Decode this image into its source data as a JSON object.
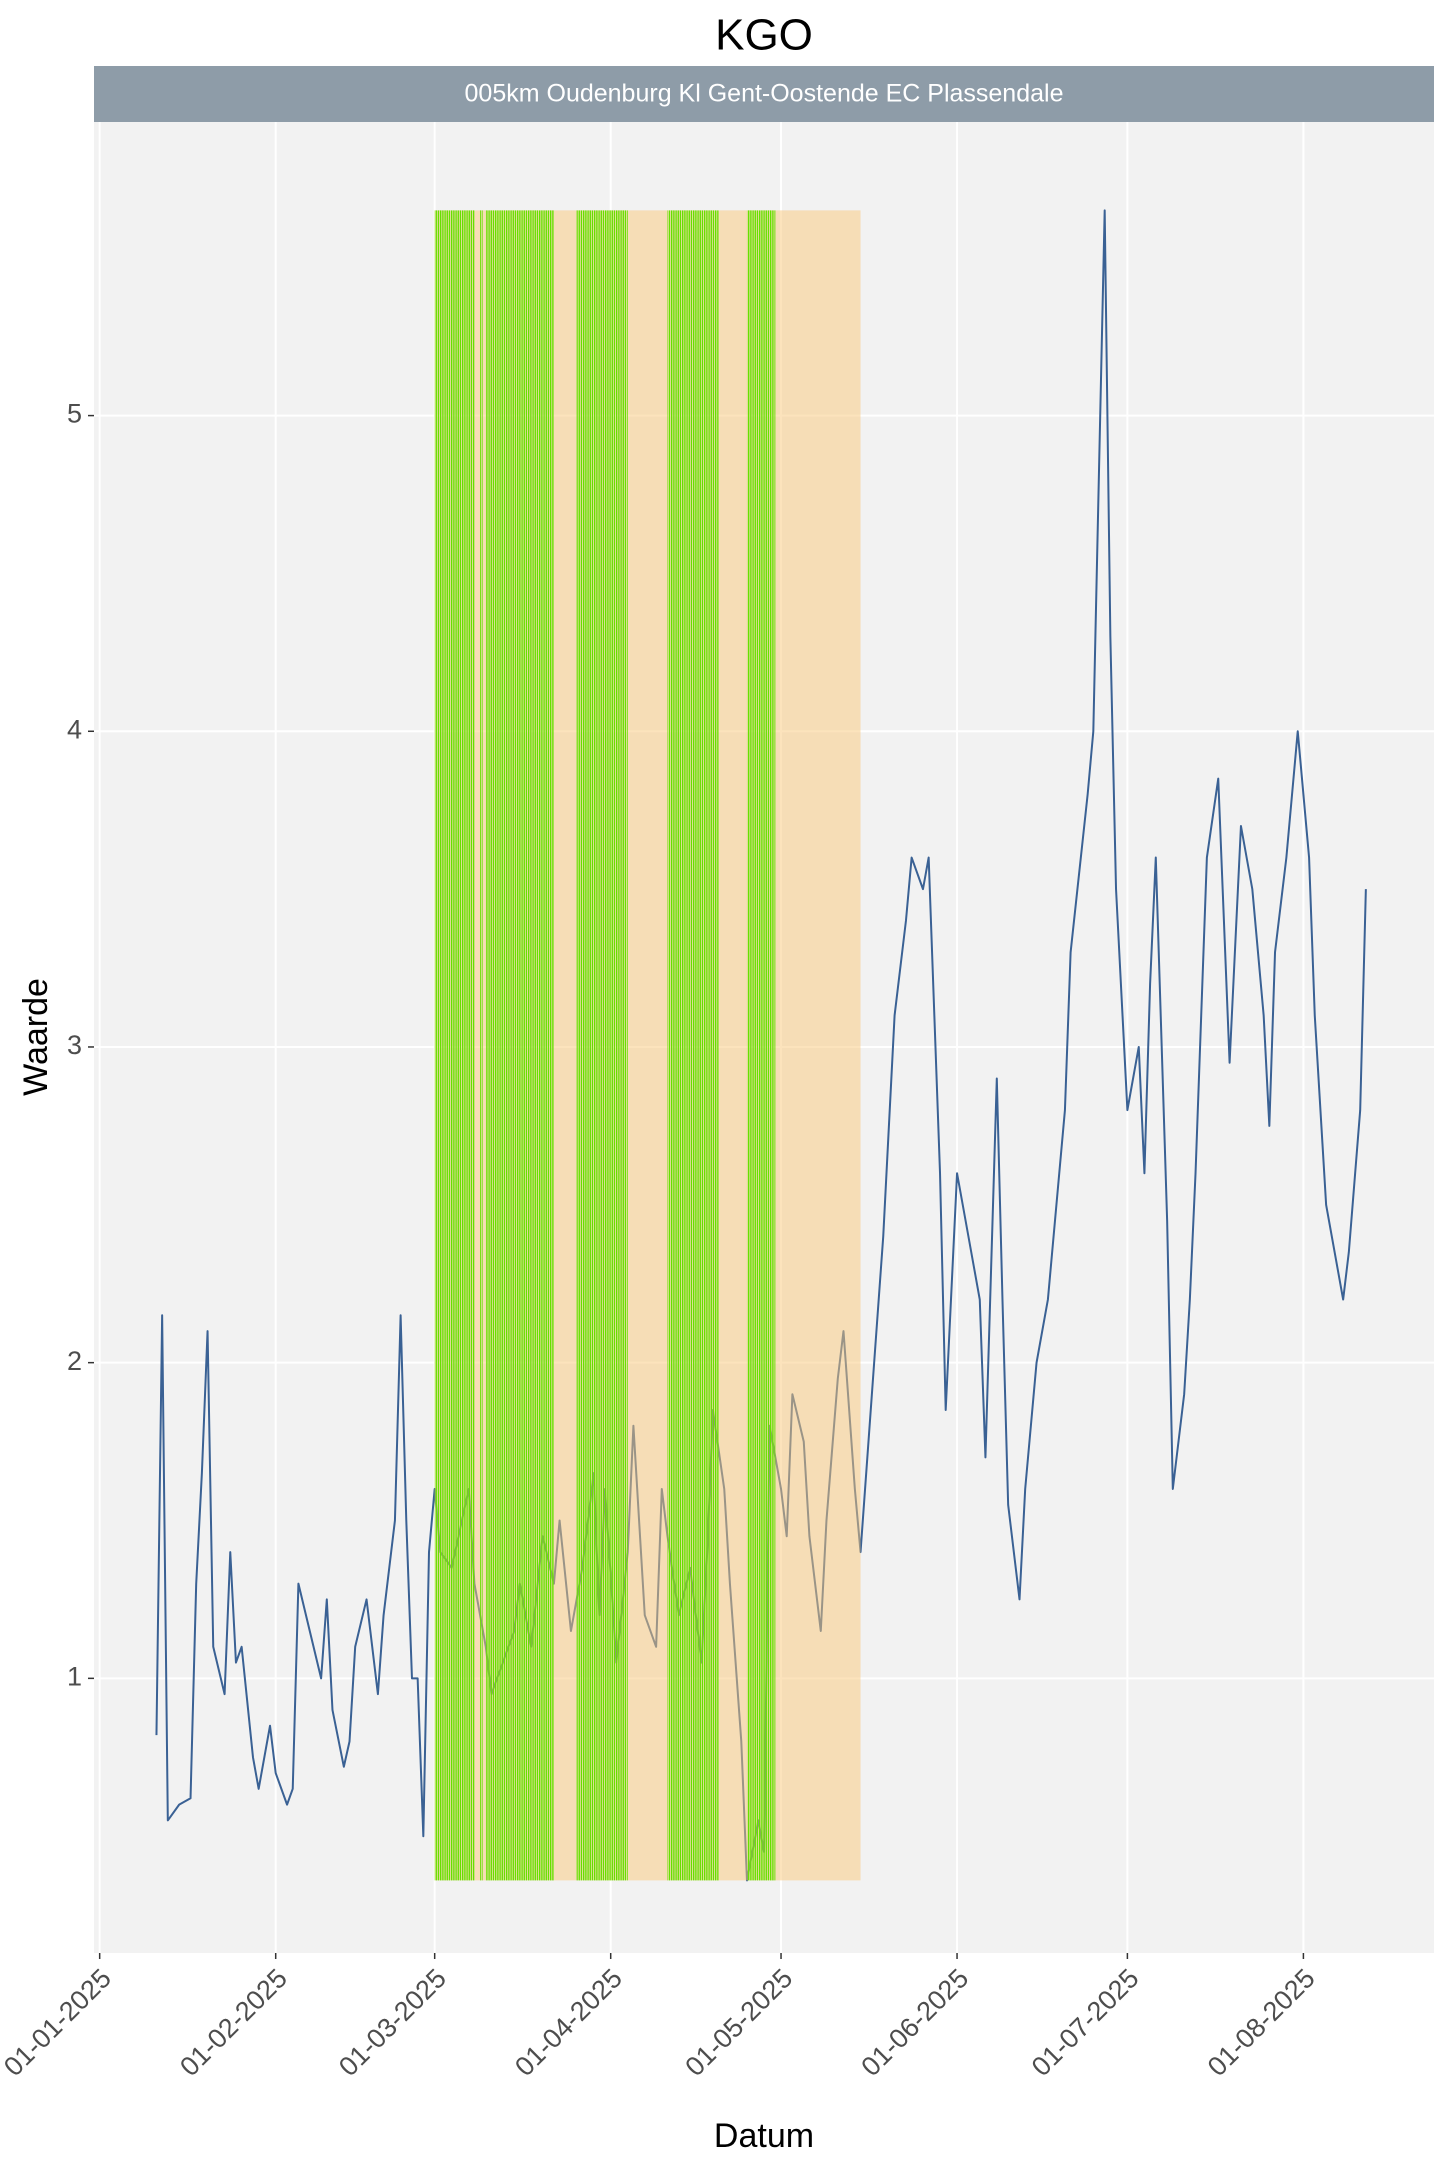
{
  "chart_data": {
    "type": "line",
    "title": "KGO",
    "facet_label": "005km Oudenburg Kl Gent-Oostende EC Plassendale",
    "x_label": "Datum",
    "y_label": "Waarde",
    "x": [
      "11-01-2025",
      "12-01-2025",
      "13-01-2025",
      "15-01-2025",
      "17-01-2025",
      "18-01-2025",
      "19-01-2025",
      "20-01-2025",
      "21-01-2025",
      "23-01-2025",
      "24-01-2025",
      "25-01-2025",
      "26-01-2025",
      "28-01-2025",
      "29-01-2025",
      "31-01-2025",
      "01-02-2025",
      "03-02-2025",
      "04-02-2025",
      "05-02-2025",
      "07-02-2025",
      "09-02-2025",
      "10-02-2025",
      "11-02-2025",
      "13-02-2025",
      "14-02-2025",
      "15-02-2025",
      "17-02-2025",
      "19-02-2025",
      "20-02-2025",
      "22-02-2025",
      "23-02-2025",
      "24-02-2025",
      "25-02-2025",
      "26-02-2025",
      "27-02-2025",
      "28-02-2025",
      "01-03-2025",
      "02-03-2025",
      "04-03-2025",
      "07-03-2025",
      "08-03-2025",
      "10-03-2025",
      "11-03-2025",
      "13-03-2025",
      "15-03-2025",
      "16-03-2025",
      "18-03-2025",
      "20-03-2025",
      "22-03-2025",
      "23-03-2025",
      "25-03-2025",
      "27-03-2025",
      "29-03-2025",
      "30-03-2025",
      "31-03-2025",
      "02-04-2025",
      "04-04-2025",
      "05-04-2025",
      "06-04-2025",
      "07-04-2025",
      "09-04-2025",
      "10-04-2025",
      "11-04-2025",
      "13-04-2025",
      "15-04-2025",
      "17-04-2025",
      "18-04-2025",
      "19-04-2025",
      "21-04-2025",
      "22-04-2025",
      "24-04-2025",
      "25-04-2025",
      "27-04-2025",
      "28-04-2025",
      "29-04-2025",
      "01-05-2025",
      "02-05-2025",
      "03-05-2025",
      "05-05-2025",
      "06-05-2025",
      "08-05-2025",
      "09-05-2025",
      "11-05-2025",
      "12-05-2025",
      "14-05-2025",
      "15-05-2025",
      "17-05-2025",
      "19-05-2025",
      "21-05-2025",
      "23-05-2025",
      "24-05-2025",
      "26-05-2025",
      "27-05-2025",
      "29-05-2025",
      "30-05-2025",
      "01-06-2025",
      "03-06-2025",
      "05-06-2025",
      "06-06-2025",
      "07-06-2025",
      "08-06-2025",
      "09-06-2025",
      "10-06-2025",
      "12-06-2025",
      "13-06-2025",
      "15-06-2025",
      "17-06-2025",
      "20-06-2025",
      "21-06-2025",
      "24-06-2025",
      "25-06-2025",
      "27-06-2025",
      "28-06-2025",
      "29-06-2025",
      "01-07-2025",
      "03-07-2025",
      "04-07-2025",
      "05-07-2025",
      "06-07-2025",
      "08-07-2025",
      "09-07-2025",
      "11-07-2025",
      "12-07-2025",
      "13-07-2025",
      "15-07-2025",
      "17-07-2025",
      "19-07-2025",
      "21-07-2025",
      "23-07-2025",
      "25-07-2025",
      "26-07-2025",
      "27-07-2025",
      "29-07-2025",
      "31-07-2025",
      "02-08-2025",
      "03-08-2025",
      "05-08-2025",
      "08-08-2025",
      "09-08-2025",
      "11-08-2025",
      "12-08-2025"
    ],
    "series": [
      {
        "color": "#3a6194",
        "values": [
          0.82,
          2.15,
          0.55,
          0.6,
          0.62,
          1.3,
          1.65,
          2.1,
          1.1,
          0.95,
          1.4,
          1.05,
          1.1,
          0.75,
          0.65,
          0.85,
          0.7,
          0.6,
          0.65,
          1.3,
          1.15,
          1.0,
          1.25,
          0.9,
          0.72,
          0.8,
          1.1,
          1.25,
          0.95,
          1.2,
          1.5,
          2.15,
          1.5,
          1.0,
          1.0,
          0.5,
          1.4,
          1.6,
          1.4,
          1.35,
          1.6,
          1.3,
          1.1,
          0.95,
          1.05,
          1.15,
          1.3,
          1.1,
          1.45,
          1.3,
          1.5,
          1.15,
          1.35,
          1.65,
          1.2,
          1.6,
          1.05,
          1.4,
          1.8,
          1.5,
          1.2,
          1.1,
          1.6,
          1.45,
          1.2,
          1.35,
          1.05,
          1.4,
          1.85,
          1.6,
          1.3,
          0.8,
          0.36,
          0.55,
          0.45,
          1.8,
          1.6,
          1.45,
          1.9,
          1.75,
          1.45,
          1.15,
          1.5,
          1.95,
          2.1,
          1.6,
          1.4,
          1.9,
          2.4,
          3.1,
          3.4,
          3.6,
          3.5,
          3.6,
          2.6,
          1.85,
          2.6,
          2.4,
          2.2,
          1.7,
          2.3,
          2.9,
          2.2,
          1.55,
          1.25,
          1.6,
          2.0,
          2.2,
          2.8,
          3.3,
          3.8,
          4.0,
          5.65,
          4.3,
          3.5,
          2.8,
          3.0,
          2.6,
          3.2,
          3.6,
          2.45,
          1.6,
          1.9,
          2.2,
          2.6,
          3.6,
          3.85,
          2.95,
          3.7,
          3.5,
          3.1,
          2.75,
          3.3,
          3.6,
          4.0,
          3.6,
          3.1,
          2.5,
          2.2,
          2.35,
          2.8,
          3.5
        ]
      }
    ],
    "xlim": [
      "31-12-2024",
      "24-08-2025"
    ],
    "xticks": [
      "01-01-2025",
      "01-02-2025",
      "01-03-2025",
      "01-04-2025",
      "01-05-2025",
      "01-06-2025",
      "01-07-2025",
      "01-08-2025"
    ],
    "ylim": [
      0.13,
      5.93
    ],
    "yticks": [
      1,
      2,
      3,
      4,
      5
    ],
    "grid": true,
    "shaded_period": {
      "start": "01-03-2025",
      "end": "15-05-2025",
      "color": "#f9c87a"
    },
    "green_periods": {
      "color": "#66e000",
      "ranges": [
        [
          "01-03-2025",
          "08-03-2025"
        ],
        [
          "09-03-2025",
          "09-03-2025"
        ],
        [
          "10-03-2025",
          "22-03-2025"
        ],
        [
          "26-03-2025",
          "04-04-2025"
        ],
        [
          "11-04-2025",
          "20-04-2025"
        ],
        [
          "25-04-2025",
          "30-04-2025"
        ]
      ]
    }
  }
}
